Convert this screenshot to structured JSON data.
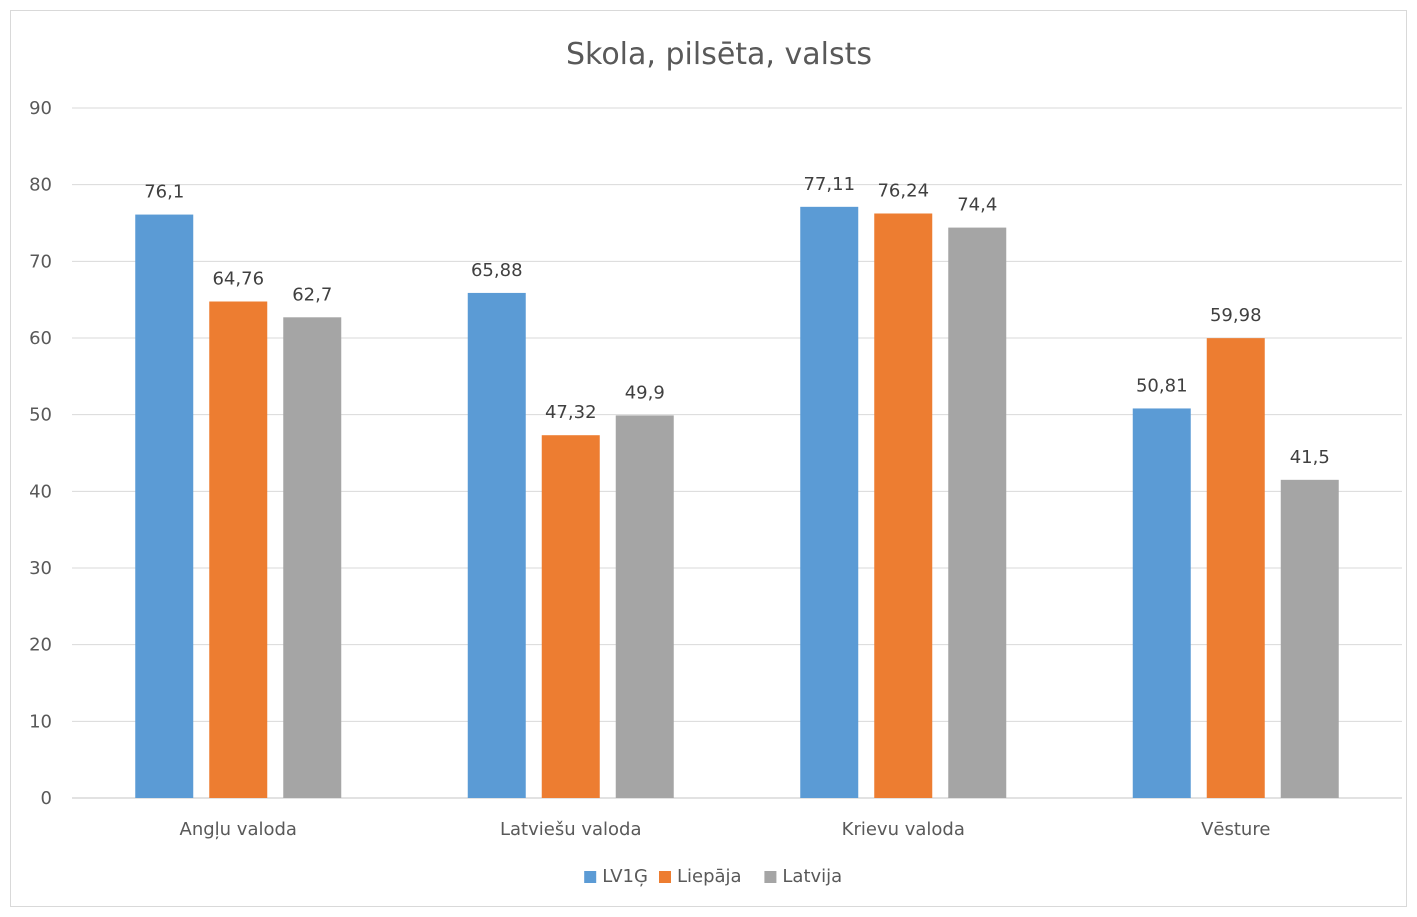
{
  "chart_data": {
    "type": "bar",
    "title": "Skola, pilsēta, valsts",
    "categories": [
      "Angļu valoda",
      "Latviešu valoda",
      "Krievu valoda",
      "Vēsture"
    ],
    "series": [
      {
        "name": "LV1Ģ",
        "color": "#5b9bd5",
        "values": [
          76.1,
          65.88,
          77.11,
          50.81
        ],
        "labels": [
          "76,1",
          "65,88",
          "77,11",
          "50,81"
        ]
      },
      {
        "name": "Liepāja",
        "color": "#ed7d31",
        "values": [
          64.76,
          47.32,
          76.24,
          59.98
        ],
        "labels": [
          "64,76",
          "47,32",
          "76,24",
          "59,98"
        ]
      },
      {
        "name": "Latvija",
        "color": "#a5a5a5",
        "values": [
          62.7,
          49.9,
          74.4,
          41.5
        ],
        "labels": [
          "62,7",
          "49,9",
          "74,4",
          "41,5"
        ]
      }
    ],
    "ylim": [
      0,
      90
    ],
    "yticks": [
      0,
      10,
      20,
      30,
      40,
      50,
      60,
      70,
      80,
      90
    ],
    "grid": true,
    "legend_position": "bottom",
    "gridline_color": "#d9d9d9"
  }
}
